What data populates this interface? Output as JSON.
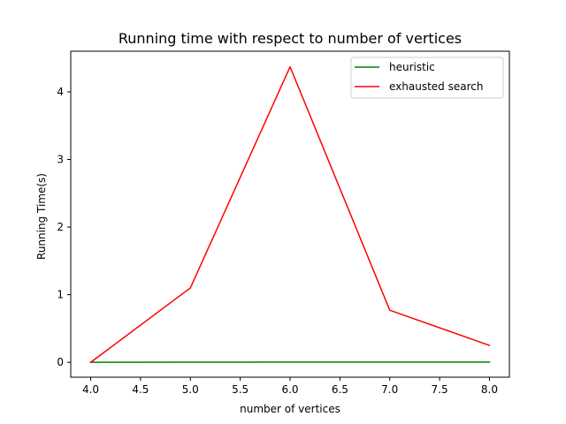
{
  "chart_data": {
    "type": "line",
    "title": "Running time with respect to number of vertices",
    "xlabel": "number of vertices",
    "ylabel": "Running Time(s)",
    "xlim": [
      3.8,
      8.2
    ],
    "ylim": [
      -0.22,
      4.6
    ],
    "xticks": [
      4.0,
      4.5,
      5.0,
      5.5,
      6.0,
      6.5,
      7.0,
      7.5,
      8.0
    ],
    "xtick_labels": [
      "4.0",
      "4.5",
      "5.0",
      "5.5",
      "6.0",
      "6.5",
      "7.0",
      "7.5",
      "8.0"
    ],
    "yticks": [
      0,
      1,
      2,
      3,
      4
    ],
    "ytick_labels": [
      "0",
      "1",
      "2",
      "3",
      "4"
    ],
    "grid": false,
    "legend_position": "top-right",
    "x": [
      4,
      5,
      6,
      7,
      8
    ],
    "series": [
      {
        "name": "heuristic",
        "color": "#008000",
        "values": [
          0.0,
          0.002,
          0.004,
          0.003,
          0.003
        ]
      },
      {
        "name": "exhausted search",
        "color": "#ff0000",
        "values": [
          0.0,
          1.1,
          4.37,
          0.77,
          0.25
        ]
      }
    ]
  }
}
